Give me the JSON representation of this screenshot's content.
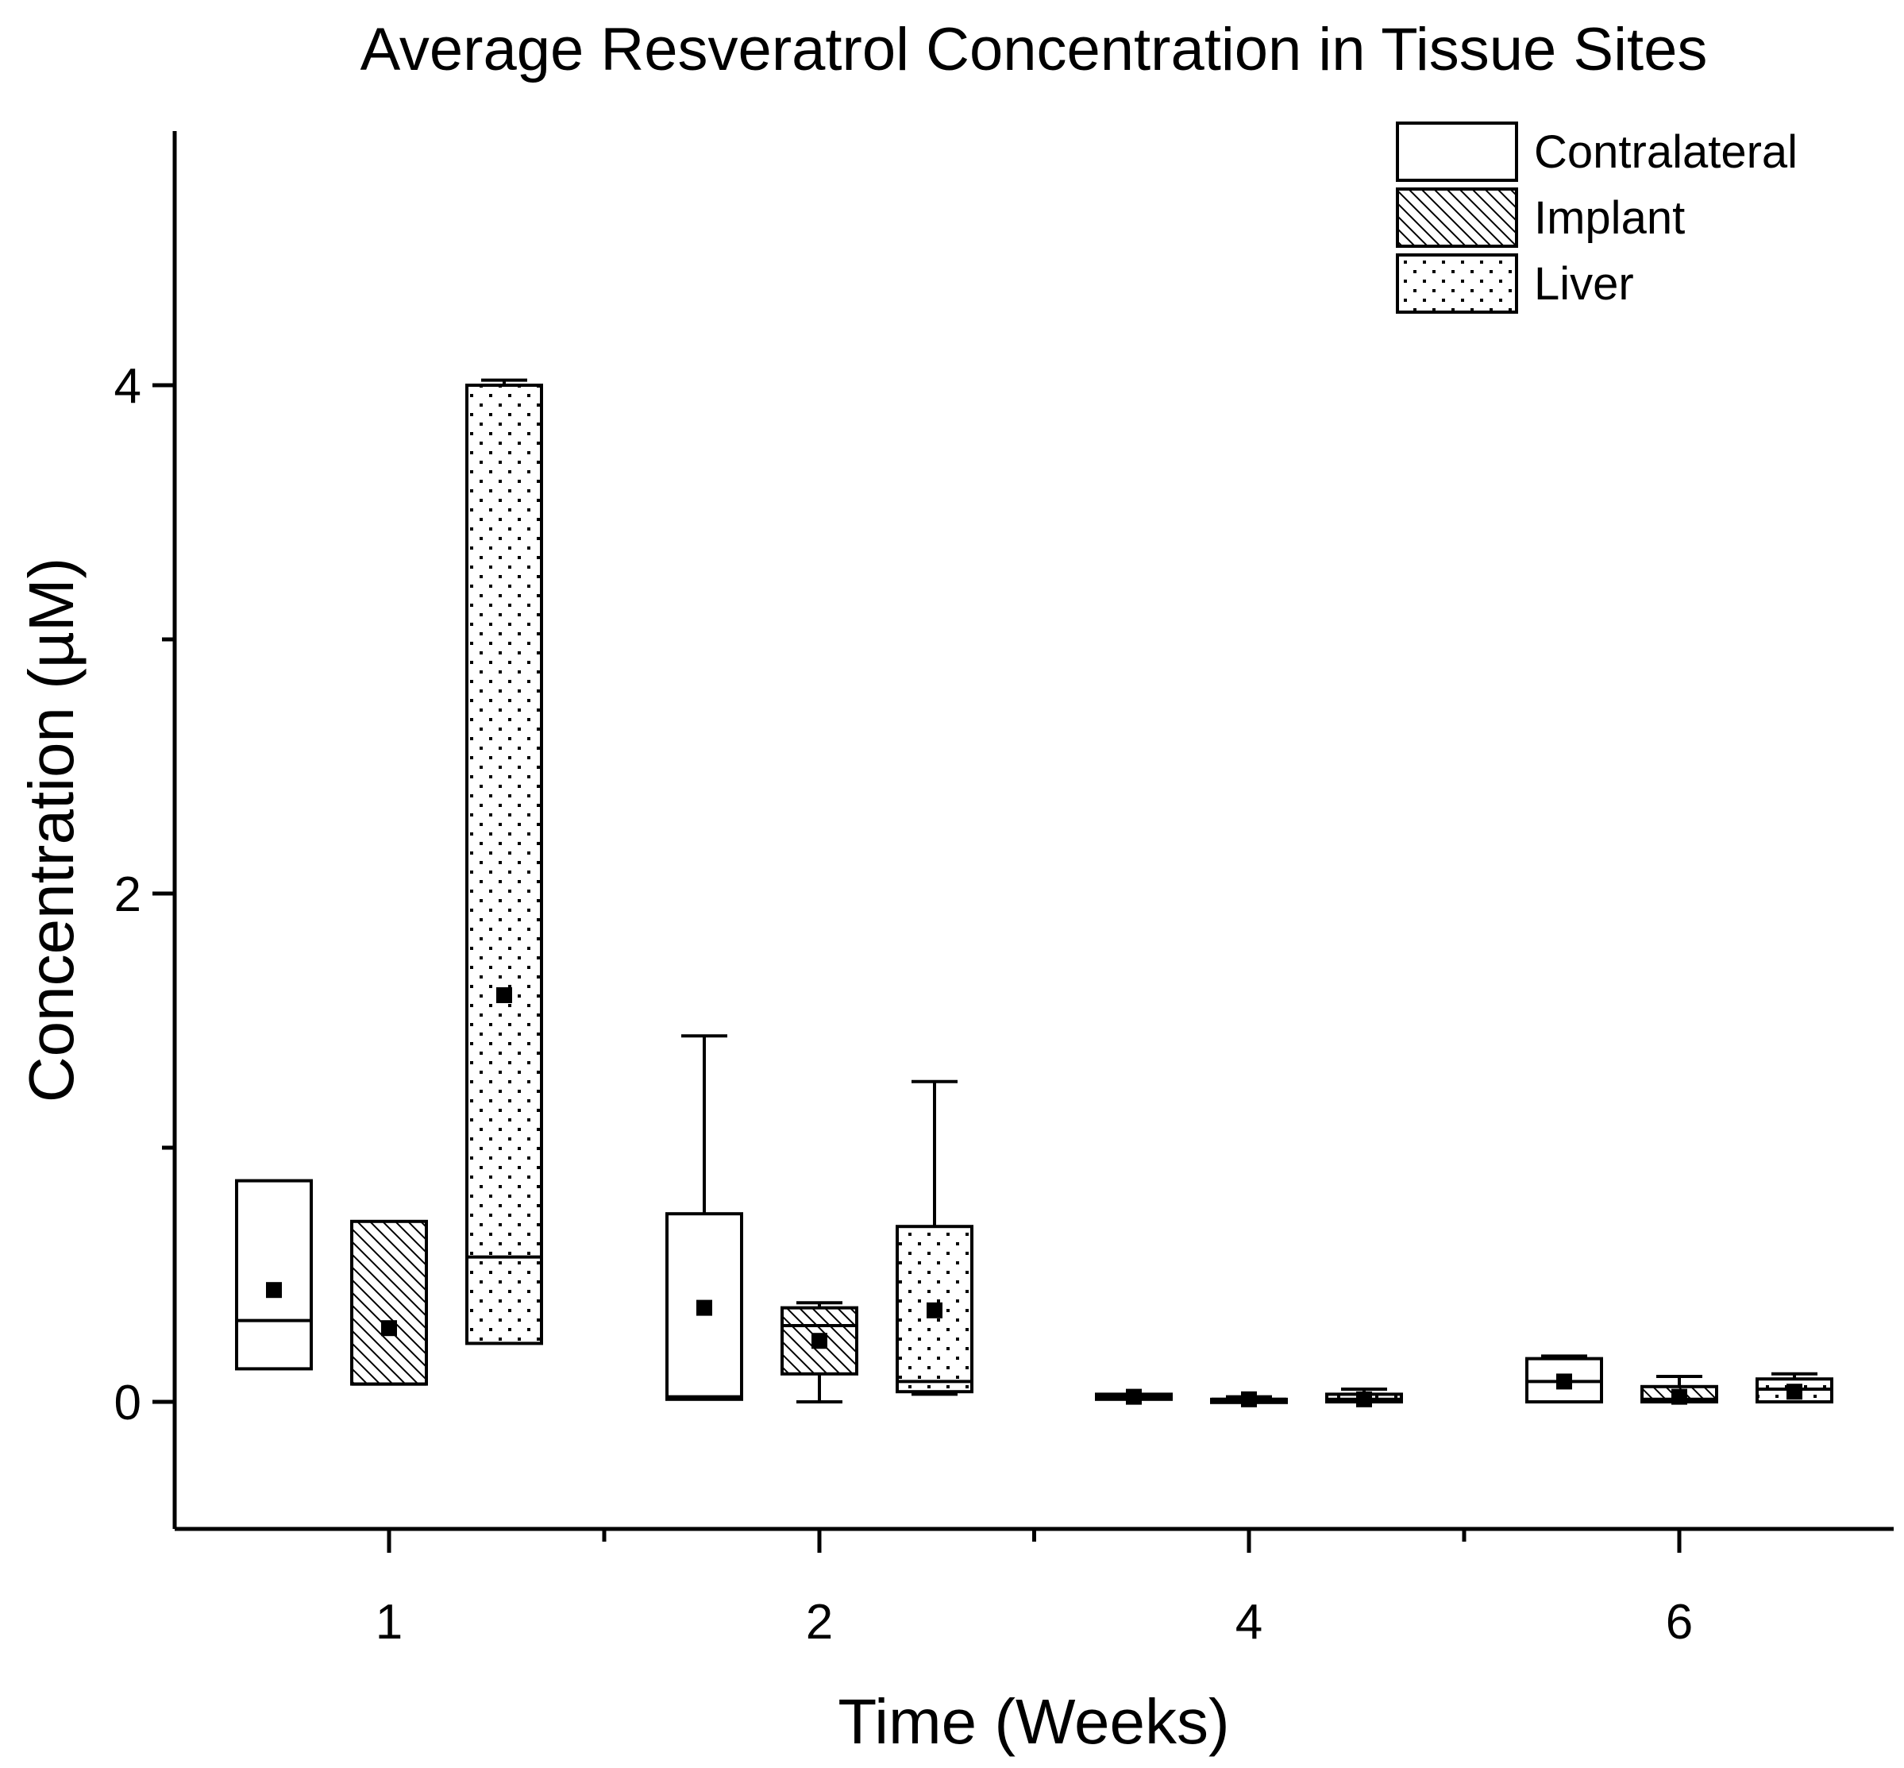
{
  "chart_data": {
    "type": "box",
    "title": "Average Resveratrol Concentration in Tissue Sites",
    "xlabel": "Time (Weeks)",
    "ylabel": "Concentration (µM)",
    "ylim": [
      -0.5,
      5.0
    ],
    "yticks": [
      0,
      2,
      4
    ],
    "ytick_labels": [
      "0",
      "2",
      "4"
    ],
    "categories": [
      "1",
      "2",
      "4",
      "6"
    ],
    "legend_position": "top-right",
    "series": [
      {
        "name": "Contralateral",
        "pattern": "none",
        "boxes": [
          {
            "q1": 0.13,
            "median": 0.32,
            "q3": 0.87,
            "mean": 0.44,
            "whisker_low": 0.13,
            "whisker_high": 0.87
          },
          {
            "q1": 0.01,
            "median": 0.02,
            "q3": 0.74,
            "mean": 0.37,
            "whisker_low": 0.01,
            "whisker_high": 1.44
          },
          {
            "q1": 0.01,
            "median": 0.02,
            "q3": 0.03,
            "mean": 0.02,
            "whisker_low": 0.01,
            "whisker_high": 0.03
          },
          {
            "q1": 0.0,
            "median": 0.08,
            "q3": 0.17,
            "mean": 0.08,
            "whisker_low": 0.0,
            "whisker_high": 0.18
          }
        ]
      },
      {
        "name": "Implant",
        "pattern": "diagonal",
        "boxes": [
          {
            "q1": 0.07,
            "median": 0.07,
            "q3": 0.71,
            "mean": 0.29,
            "whisker_low": 0.07,
            "whisker_high": 0.71
          },
          {
            "q1": 0.11,
            "median": 0.3,
            "q3": 0.37,
            "mean": 0.24,
            "whisker_low": 0.0,
            "whisker_high": 0.39
          },
          {
            "q1": 0.0,
            "median": 0.01,
            "q3": 0.01,
            "mean": 0.01,
            "whisker_low": 0.0,
            "whisker_high": 0.02
          },
          {
            "q1": 0.0,
            "median": 0.01,
            "q3": 0.06,
            "mean": 0.02,
            "whisker_low": 0.0,
            "whisker_high": 0.1
          }
        ]
      },
      {
        "name": "Liver",
        "pattern": "dots",
        "boxes": [
          {
            "q1": 0.23,
            "median": 0.57,
            "q3": 4.0,
            "mean": 1.6,
            "whisker_low": 0.23,
            "whisker_high": 4.02
          },
          {
            "q1": 0.04,
            "median": 0.08,
            "q3": 0.69,
            "mean": 0.36,
            "whisker_low": 0.03,
            "whisker_high": 1.26
          },
          {
            "q1": 0.0,
            "median": 0.01,
            "q3": 0.03,
            "mean": 0.01,
            "whisker_low": 0.0,
            "whisker_high": 0.05
          },
          {
            "q1": 0.0,
            "median": 0.05,
            "q3": 0.09,
            "mean": 0.04,
            "whisker_low": 0.0,
            "whisker_high": 0.11
          }
        ]
      }
    ]
  }
}
